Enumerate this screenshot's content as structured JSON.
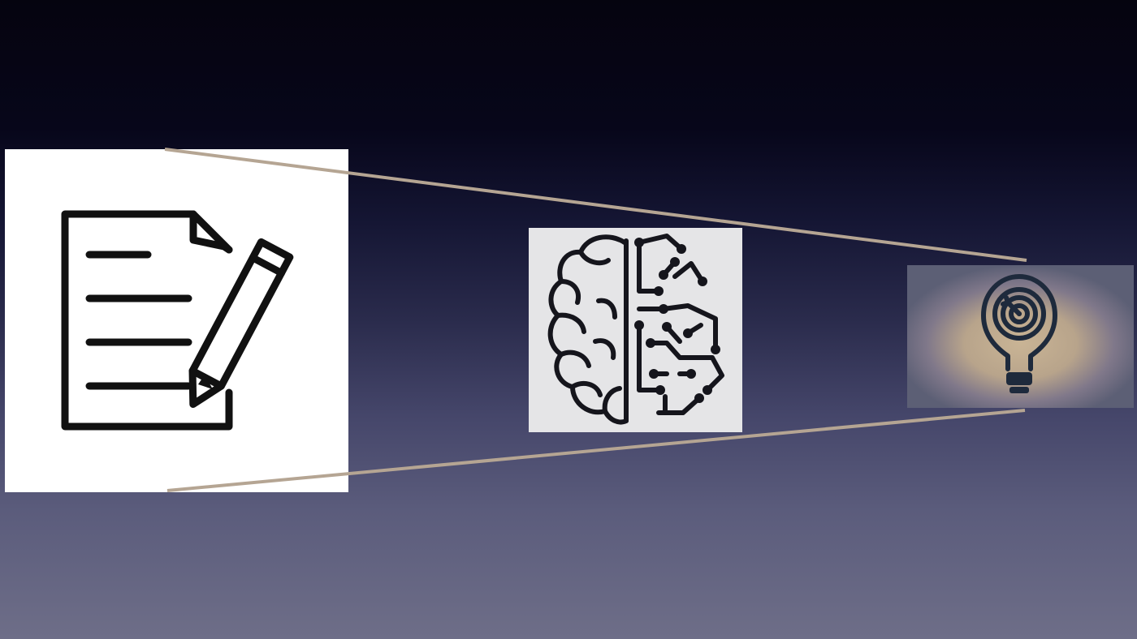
{
  "slide": {
    "background_top_color": "#05040f",
    "background_bottom_color": "#6e6e88",
    "connector_color": "#b5a593"
  },
  "panels": [
    {
      "name": "document",
      "icon": "document-pencil-icon",
      "background": "#ffffff",
      "stroke": "#111111"
    },
    {
      "name": "brain",
      "icon": "brain-circuit-icon",
      "background": "#e5e5e7",
      "stroke": "#15151c"
    },
    {
      "name": "idea",
      "icon": "lightbulb-target-icon",
      "background": "#5c5f75",
      "glow": "#c0ab8e",
      "stroke": "#1e2a3c"
    }
  ]
}
